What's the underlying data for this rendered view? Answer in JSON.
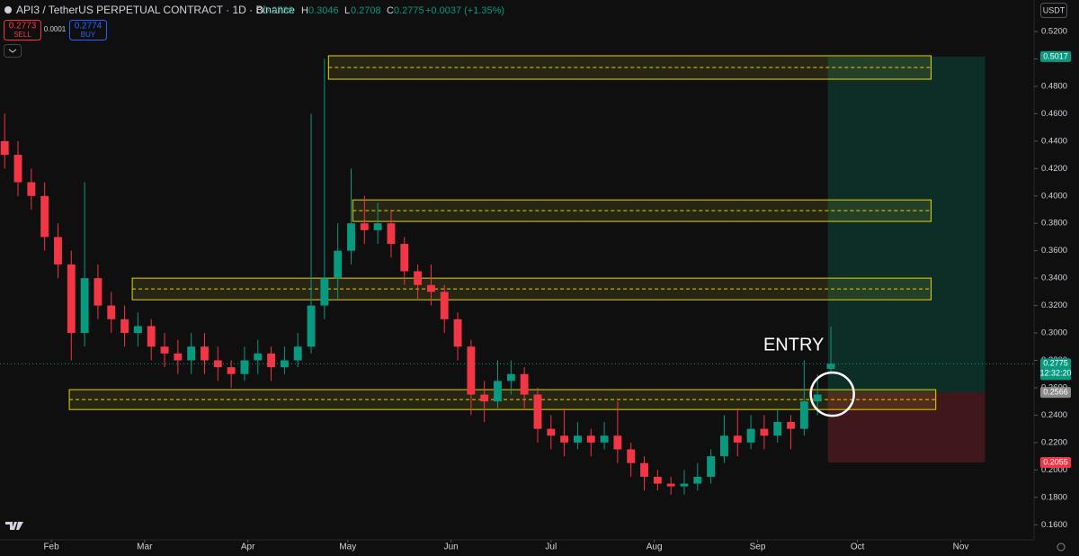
{
  "chart_data": {
    "type": "candlestick",
    "title": "API3 / TetherUS PERPETUAL CONTRACT · 1D · Binance",
    "ohlc_header": {
      "o_label": "O",
      "h_label": "H",
      "l_label": "L",
      "c_label": "C",
      "change": "+0.0037 (+1.35%)"
    },
    "sell": {
      "price": 0.2773,
      "label": "SELL"
    },
    "buy": {
      "price": 0.2774,
      "label": "BUY"
    },
    "spread": 0.0001,
    "currency": "USDT",
    "countdown": "12:32:20",
    "annotation": "ENTRY",
    "up_color": "#089981",
    "down_color": "#f23645",
    "xlim": [
      16.6,
      327
    ],
    "xticks": [
      {
        "value": 32,
        "label": "Feb"
      },
      {
        "value": 60,
        "label": "Mar"
      },
      {
        "value": 91,
        "label": "Apr"
      },
      {
        "value": 121,
        "label": "May"
      },
      {
        "value": 152,
        "label": "Jun"
      },
      {
        "value": 182,
        "label": "Jul"
      },
      {
        "value": 213,
        "label": "Aug"
      },
      {
        "value": 244,
        "label": "Sep"
      },
      {
        "value": 274,
        "label": "Oct"
      },
      {
        "value": 305,
        "label": "Nov"
      }
    ],
    "ylim": [
      0.149,
      0.543
    ],
    "yticks": [
      {
        "value": 0.16,
        "label": "0.1600"
      },
      {
        "value": 0.18,
        "label": "0.1800"
      },
      {
        "value": 0.2,
        "label": "0.2000"
      },
      {
        "value": 0.22,
        "label": "0.2200"
      },
      {
        "value": 0.24,
        "label": "0.2400"
      },
      {
        "value": 0.26,
        "label": "0.2600"
      },
      {
        "value": 0.28,
        "label": "0.2800"
      },
      {
        "value": 0.3,
        "label": "0.3000"
      },
      {
        "value": 0.32,
        "label": "0.3200"
      },
      {
        "value": 0.34,
        "label": "0.3400"
      },
      {
        "value": 0.36,
        "label": "0.3600"
      },
      {
        "value": 0.38,
        "label": "0.3800"
      },
      {
        "value": 0.4,
        "label": "0.4000"
      },
      {
        "value": 0.42,
        "label": "0.4200"
      },
      {
        "value": 0.44,
        "label": "0.4400"
      },
      {
        "value": 0.46,
        "label": "0.4600"
      },
      {
        "value": 0.48,
        "label": "0.4800"
      },
      {
        "value": 0.5,
        "label": "0.5000"
      },
      {
        "value": 0.52,
        "label": "0.5200"
      }
    ],
    "x": [
      18,
      22,
      26,
      30,
      34,
      38,
      42,
      46,
      50,
      54,
      58,
      62,
      66,
      70,
      74,
      78,
      82,
      86,
      90,
      94,
      98,
      102,
      106,
      110,
      114,
      118,
      122,
      126,
      130,
      134,
      138,
      142,
      146,
      150,
      154,
      158,
      162,
      166,
      170,
      174,
      178,
      182,
      186,
      190,
      194,
      198,
      202,
      206,
      210,
      214,
      218,
      222,
      226,
      230,
      234,
      238,
      242,
      246,
      250,
      254,
      258,
      262,
      266
    ],
    "open": [
      0.44,
      0.43,
      0.41,
      0.4,
      0.37,
      0.35,
      0.3,
      0.34,
      0.32,
      0.31,
      0.3,
      0.305,
      0.29,
      0.285,
      0.28,
      0.29,
      0.28,
      0.275,
      0.27,
      0.28,
      0.285,
      0.275,
      0.28,
      0.29,
      0.32,
      0.34,
      0.36,
      0.38,
      0.375,
      0.38,
      0.365,
      0.345,
      0.335,
      0.33,
      0.31,
      0.29,
      0.255,
      0.25,
      0.265,
      0.27,
      0.255,
      0.23,
      0.225,
      0.22,
      0.225,
      0.22,
      0.225,
      0.215,
      0.205,
      0.195,
      0.19,
      0.188,
      0.19,
      0.195,
      0.21,
      0.225,
      0.22,
      0.23,
      0.225,
      0.235,
      0.23,
      0.25,
      0.2738
    ],
    "high": [
      0.46,
      0.44,
      0.42,
      0.41,
      0.38,
      0.36,
      0.41,
      0.35,
      0.33,
      0.32,
      0.315,
      0.31,
      0.3,
      0.295,
      0.3,
      0.3,
      0.29,
      0.28,
      0.29,
      0.295,
      0.29,
      0.29,
      0.3,
      0.46,
      0.5,
      0.38,
      0.42,
      0.4,
      0.395,
      0.39,
      0.37,
      0.35,
      0.35,
      0.335,
      0.315,
      0.295,
      0.265,
      0.28,
      0.28,
      0.275,
      0.26,
      0.24,
      0.245,
      0.235,
      0.23,
      0.235,
      0.25,
      0.22,
      0.21,
      0.2,
      0.195,
      0.2,
      0.205,
      0.215,
      0.24,
      0.245,
      0.24,
      0.24,
      0.245,
      0.24,
      0.28,
      0.27,
      0.3046
    ],
    "low": [
      0.42,
      0.4,
      0.39,
      0.36,
      0.34,
      0.28,
      0.29,
      0.31,
      0.3,
      0.29,
      0.29,
      0.28,
      0.275,
      0.27,
      0.27,
      0.27,
      0.265,
      0.26,
      0.265,
      0.27,
      0.265,
      0.27,
      0.275,
      0.285,
      0.31,
      0.325,
      0.35,
      0.365,
      0.365,
      0.355,
      0.335,
      0.325,
      0.32,
      0.3,
      0.28,
      0.24,
      0.235,
      0.245,
      0.255,
      0.245,
      0.22,
      0.215,
      0.21,
      0.215,
      0.21,
      0.215,
      0.205,
      0.195,
      0.185,
      0.185,
      0.182,
      0.182,
      0.185,
      0.19,
      0.205,
      0.21,
      0.215,
      0.215,
      0.22,
      0.215,
      0.225,
      0.24,
      0.2708
    ],
    "close": [
      0.43,
      0.41,
      0.4,
      0.37,
      0.35,
      0.3,
      0.34,
      0.32,
      0.31,
      0.3,
      0.305,
      0.29,
      0.285,
      0.28,
      0.29,
      0.28,
      0.275,
      0.27,
      0.28,
      0.285,
      0.275,
      0.28,
      0.29,
      0.32,
      0.34,
      0.36,
      0.38,
      0.375,
      0.38,
      0.365,
      0.345,
      0.335,
      0.33,
      0.31,
      0.29,
      0.255,
      0.25,
      0.265,
      0.27,
      0.255,
      0.23,
      0.225,
      0.22,
      0.225,
      0.22,
      0.225,
      0.215,
      0.205,
      0.195,
      0.19,
      0.188,
      0.19,
      0.195,
      0.21,
      0.225,
      0.22,
      0.23,
      0.225,
      0.235,
      0.23,
      0.25,
      0.255,
      0.2775
    ],
    "zones": [
      {
        "x": [
          115.2,
          296.1
        ],
        "y": [
          0.4852,
          0.5023
        ]
      },
      {
        "x": [
          122.5,
          296.1
        ],
        "y": [
          0.3814,
          0.3971
        ]
      },
      {
        "x": [
          56.3,
          296.1
        ],
        "y": [
          0.3242,
          0.34
        ]
      },
      {
        "x": [
          37.4,
          297.5
        ],
        "y": [
          0.2441,
          0.2586
        ]
      }
    ],
    "position": {
      "x": [
        265.1,
        312.3
      ],
      "entry": 0.2566,
      "target": 0.5017,
      "stop": 0.2055
    }
  }
}
